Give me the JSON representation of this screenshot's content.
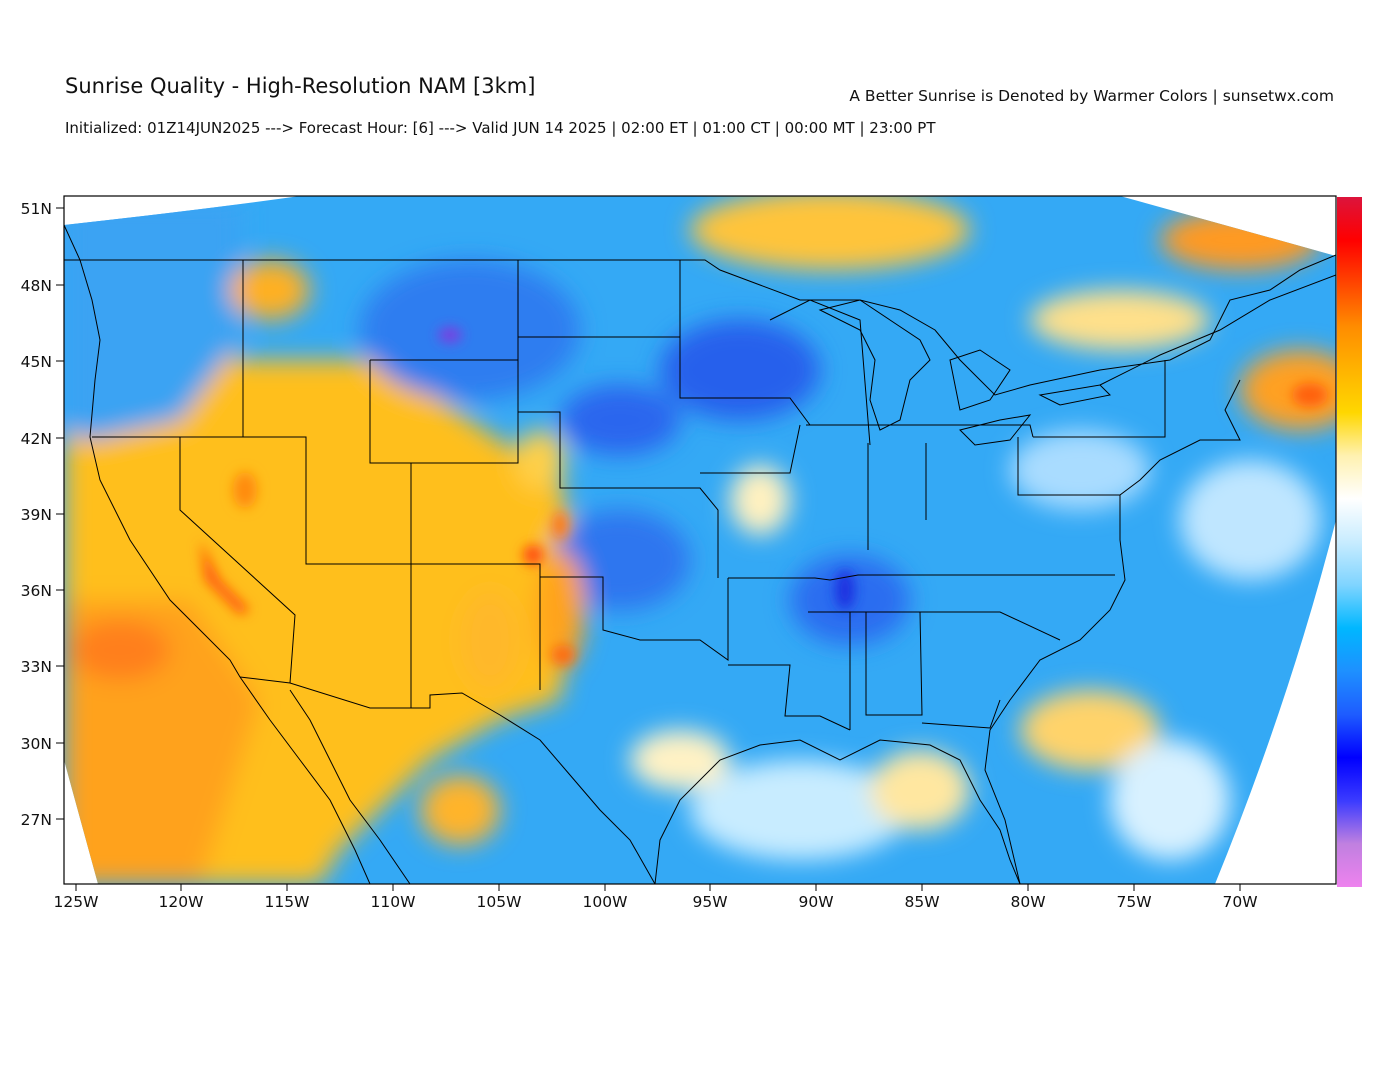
{
  "header": {
    "title": "Sunrise Quality - High-Resolution NAM [3km]",
    "subtitle": "Initialized: 01Z14JUN2025 ---> Forecast Hour: [6] ---> Valid JUN 14 2025 | 02:00 ET | 01:00 CT | 00:00 MT | 23:00 PT",
    "tagline": "A Better Sunrise is Denoted by Warmer Colors | sunsetwx.com"
  },
  "axes": {
    "lat_labels": [
      "51N",
      "48N",
      "45N",
      "42N",
      "39N",
      "36N",
      "33N",
      "30N",
      "27N"
    ],
    "lon_labels": [
      "125W",
      "120W",
      "115W",
      "110W",
      "105W",
      "100W",
      "95W",
      "90W",
      "85W",
      "80W",
      "75W",
      "70W"
    ]
  },
  "colorbar": {
    "scale_colors": [
      "#ee82ee",
      "#c080e0",
      "#3b3bff",
      "#0000ff",
      "#1e5cff",
      "#1e90ff",
      "#00b7ff",
      "#7fd4ff",
      "#c8ecff",
      "#ffffff",
      "#fff1b0",
      "#ffd700",
      "#ffb300",
      "#ff8c00",
      "#ff4500",
      "#ff0000",
      "#dc143c"
    ]
  },
  "colors": {
    "warm": "#ffbf1f",
    "cool": "#1e90ff",
    "deep": "#1030e0",
    "border": "#000000"
  }
}
